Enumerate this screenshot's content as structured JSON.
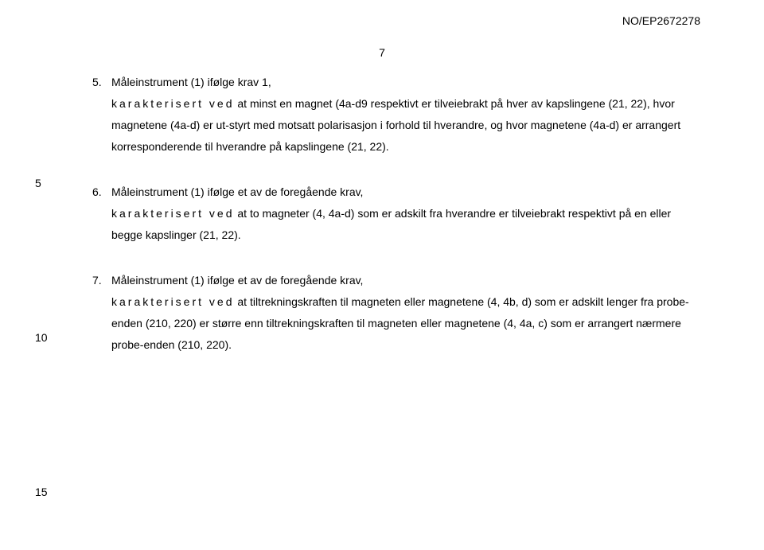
{
  "doc_ref": "NO/EP2672278",
  "page_no": "7",
  "line_numbers": {
    "five": "5",
    "ten": "10",
    "fifteen": "15"
  },
  "claims": [
    {
      "n": "5.",
      "first": "Måleinstrument (1) ifølge krav 1,",
      "spaced": "karakterisert ved",
      "after_spaced": " at minst en magnet (4a-d9 respektivt er",
      "rest": "tilveiebrakt på hver av kapslingene (21, 22), hvor magnetene (4a-d) er ut-styrt med motsatt polarisasjon i forhold til hverandre, og hvor magnetene (4a-d) er arrangert korresponderende til hverandre på kapslingene (21, 22)."
    },
    {
      "n": "6.",
      "first": "Måleinstrument (1) ifølge et av de foregående krav,",
      "spaced": "karakterisert ved",
      "after_spaced": " at to magneter (4, 4a-d) som er adskilt",
      "rest": "fra hverandre er tilveiebrakt respektivt på en eller begge kapslinger (21, 22)."
    },
    {
      "n": "7.",
      "first": "Måleinstrument (1) ifølge et av de foregående krav,",
      "spaced": "karakterisert ved",
      "after_spaced": " at tiltrekningskraften til magneten eller",
      "rest": "magnetene (4, 4b, d) som er adskilt lenger fra probe-enden (210, 220) er større enn tiltrekningskraften til magneten eller magnetene (4, 4a, c) som er arrangert nærmere probe-enden (210, 220)."
    }
  ]
}
